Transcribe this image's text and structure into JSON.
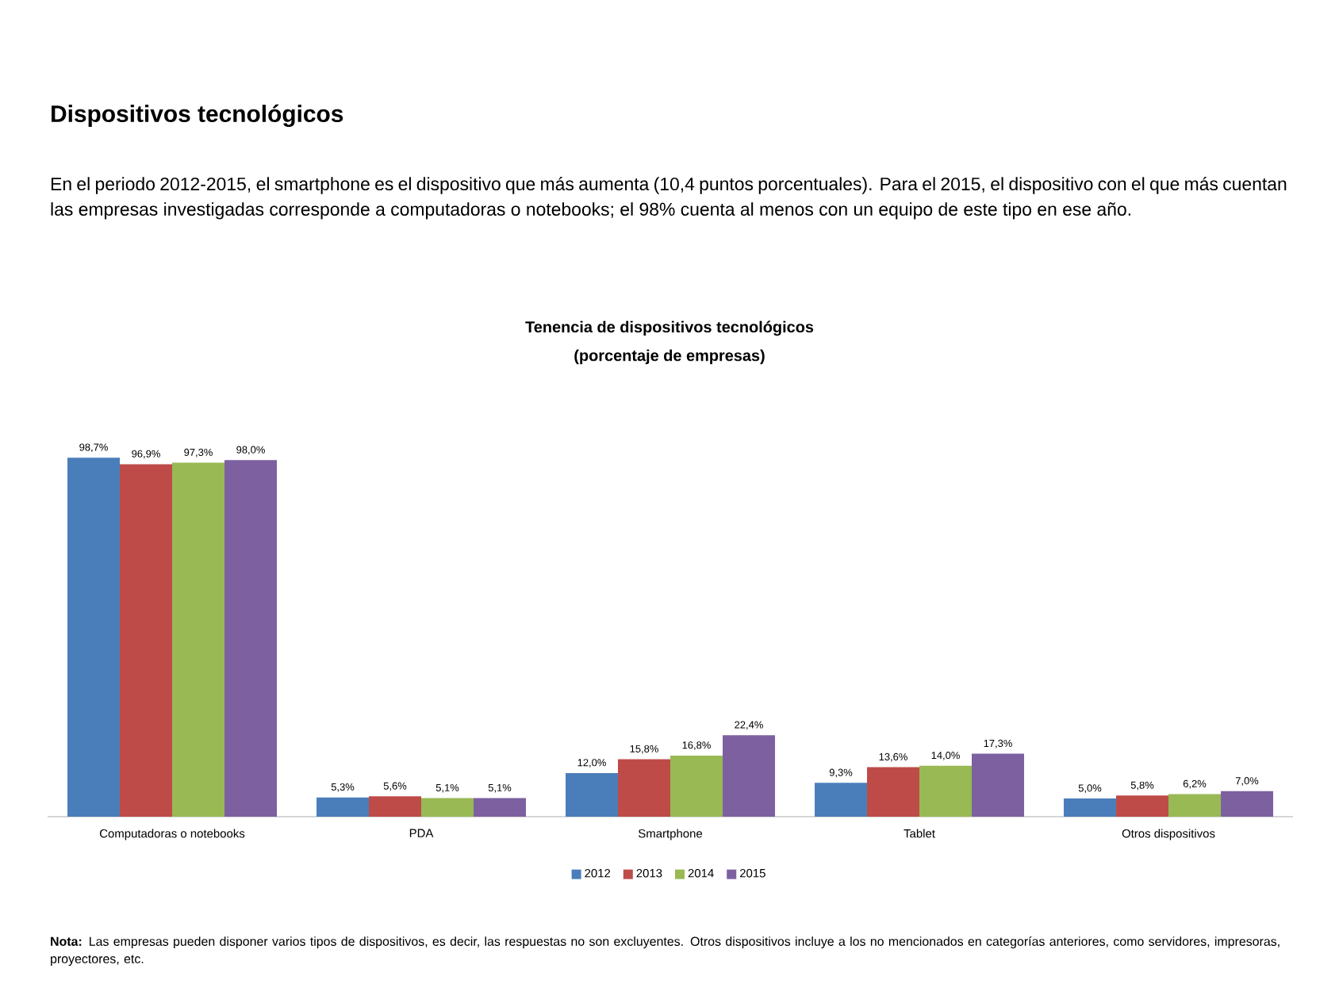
{
  "chart_data": {
    "type": "bar",
    "title": "Tenencia de dispositivos tecnológicos",
    "subtitle": "(porcentaje de empresas)",
    "annotations": [
      "Dispositivos tecnológicos",
      "En el periodo 2012-2015, el smartphone es el dispositivo que más aumenta (10,4 puntos porcentuales). Para el 2015, el dispositivo con el que más cuentan las empresas investigadas corresponde a computadoras o notebooks; el 98% cuenta al menos con un equipo de este tipo en ese año.",
      "**Nota:** Las empresas pueden disponer varios tipos de dispositivos, es decir, las respuestas no son excluyentes. Otros dispositivos incluye a los no mencionados en categorías anteriores, como servidores, impresoras, proyectores, etc."
    ],
    "categories": [
      "Computadoras o notebooks",
      "PDA",
      "Smartphone",
      "Tablet",
      "Otros dispositivos"
    ],
    "series": [
      {
        "name": "2012",
        "color": "#4a7ebb",
        "values": [
          98.7,
          5.3,
          12.0,
          9.3,
          5.0
        ],
        "value_labels": [
          "98,7%",
          "5,3%",
          "12,0%",
          "9,3%",
          "5,0%"
        ]
      },
      {
        "name": "2013",
        "color": "#be4b48",
        "values": [
          96.9,
          5.6,
          15.8,
          13.6,
          5.8
        ],
        "value_labels": [
          "96,9%",
          "5,6%",
          "15,8%",
          "13,6%",
          "5,8%"
        ]
      },
      {
        "name": "2014",
        "color": "#98b954",
        "values": [
          97.3,
          5.1,
          16.8,
          14.0,
          6.2
        ],
        "value_labels": [
          "97,3%",
          "5,1%",
          "16,8%",
          "14,0%",
          "6,2%"
        ]
      },
      {
        "name": "2015",
        "color": "#7d60a0",
        "values": [
          98.0,
          5.1,
          22.4,
          17.3,
          7.0
        ],
        "value_labels": [
          "98,0%",
          "5,1%",
          "22,4%",
          "17,3%",
          "7,0%"
        ]
      }
    ],
    "legend": "bottom"
  }
}
